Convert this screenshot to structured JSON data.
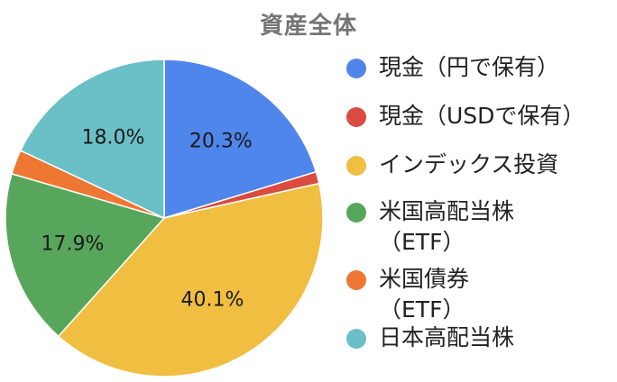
{
  "chart_data": {
    "type": "pie",
    "title": "資産全体",
    "legend_position": "right",
    "slices": [
      {
        "name": "現金（円で保有）",
        "value": 20.3,
        "label": "20.3%",
        "color": "#4f86ec"
      },
      {
        "name": "現金（USDで保有）",
        "value": 1.2,
        "label": "",
        "color": "#db4b3f"
      },
      {
        "name": "インデックス投資",
        "value": 40.1,
        "label": "40.1%",
        "color": "#f0be41"
      },
      {
        "name": "米国高配当株\n（ETF）",
        "value": 17.9,
        "label": "17.9%",
        "color": "#58a65c"
      },
      {
        "name": "米国債券\n（ETF）",
        "value": 2.5,
        "label": "",
        "color": "#ed7733"
      },
      {
        "name": "日本高配当株",
        "value": 18.0,
        "label": "18.0%",
        "color": "#6bbfc7"
      }
    ]
  }
}
